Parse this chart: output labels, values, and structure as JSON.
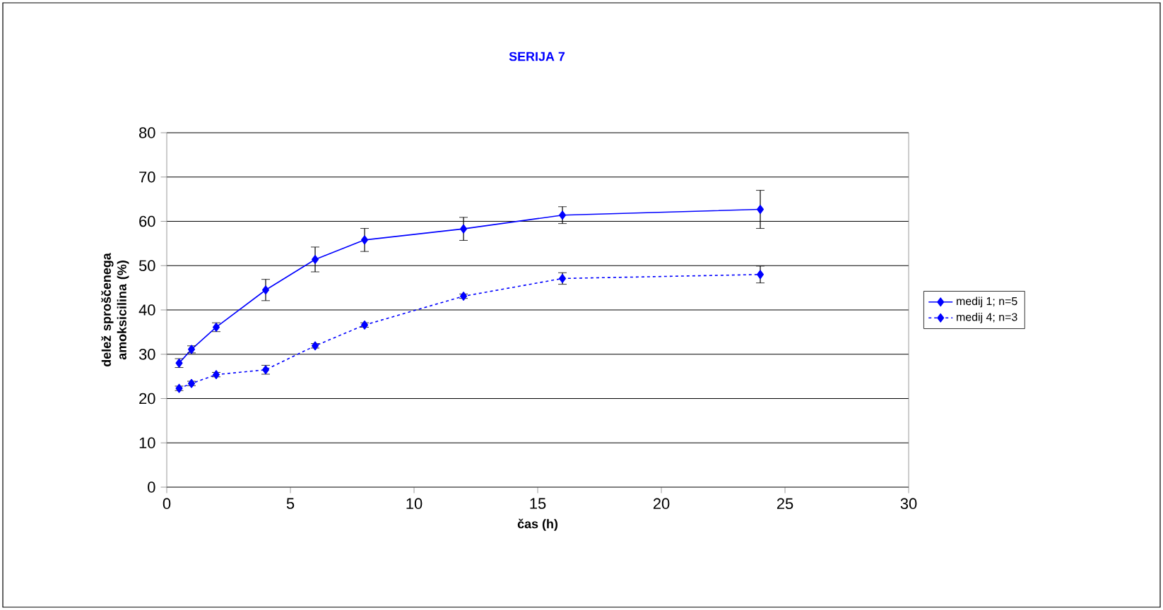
{
  "chart_data": {
    "type": "line",
    "title": "SERIJA 7",
    "xlabel": "čas (h)",
    "ylabel": "delež sproščenega amoksicilina (%)",
    "x": [
      0.5,
      1,
      2,
      4,
      6,
      8,
      12,
      16,
      24
    ],
    "series": [
      {
        "name": "medij 1; n=5",
        "color": "#0000ff",
        "line_style": "solid",
        "values": [
          28.0,
          31.1,
          36.1,
          44.5,
          51.4,
          55.8,
          58.3,
          61.4,
          62.7
        ],
        "errors": [
          1.0,
          0.8,
          1.0,
          2.4,
          2.8,
          2.6,
          2.6,
          1.9,
          4.3
        ]
      },
      {
        "name": "medij 4; n=3",
        "color": "#0000ff",
        "line_style": "dotted",
        "values": [
          22.3,
          23.4,
          25.4,
          26.5,
          31.9,
          36.6,
          43.1,
          47.1,
          48.0
        ],
        "errors": [
          0.5,
          0.5,
          0.5,
          1.0,
          0.5,
          0.5,
          0.5,
          1.3,
          1.9
        ]
      }
    ],
    "xlim": [
      0,
      30
    ],
    "ylim": [
      0,
      80
    ],
    "xticks": [
      0,
      5,
      10,
      15,
      20,
      25,
      30
    ],
    "yticks": [
      0,
      10,
      20,
      30,
      40,
      50,
      60,
      70,
      80
    ],
    "grid": "y",
    "legend": "right",
    "marker": "diamond"
  }
}
